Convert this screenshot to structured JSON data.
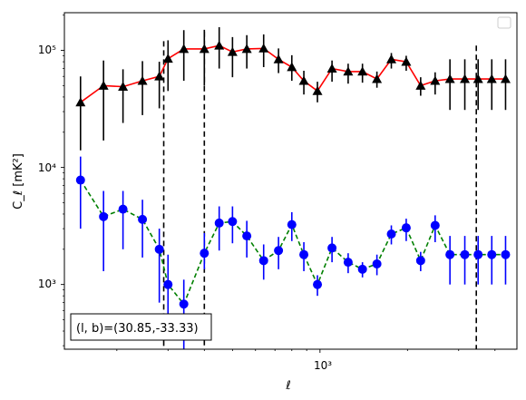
{
  "chart_data": {
    "type": "scatter",
    "title": "",
    "xlabel": "ℓ",
    "ylabel": "C_ℓ  [mK²]",
    "xscale": "log",
    "yscale": "log",
    "xlim": [
      132,
      4760
    ],
    "ylim": [
      280,
      210000
    ],
    "grid": false,
    "legend": {
      "placement": "top-right",
      "entries": []
    },
    "x_tick_label": "10³",
    "y_tick_labels": [
      "10³",
      "10⁴",
      "10⁵"
    ],
    "annotation": "(l, b)=(30.85,-33.33)",
    "vlines": [
      290,
      400,
      3450
    ],
    "series": [
      {
        "marker": "triangle",
        "color": "#000000",
        "line_color": "#ff0000",
        "errorbar_color": "#000000",
        "x": [
          150,
          180,
          210,
          245,
          280,
          300,
          340,
          400,
          450,
          500,
          560,
          640,
          720,
          800,
          880,
          980,
          1100,
          1250,
          1400,
          1570,
          1760,
          1980,
          2220,
          2490,
          2800,
          3150,
          3500,
          3900,
          4350
        ],
        "y": [
          36000,
          50000,
          49000,
          55000,
          60000,
          85000,
          103000,
          103000,
          110000,
          97000,
          103000,
          104000,
          84000,
          72000,
          55000,
          45000,
          70000,
          66000,
          66000,
          57000,
          84000,
          80000,
          50000,
          55000,
          57000,
          57000,
          57000,
          57000,
          57000
        ],
        "err_lo": [
          22000,
          33000,
          25000,
          27000,
          28000,
          40000,
          48000,
          53000,
          40000,
          38000,
          33000,
          32000,
          20000,
          17000,
          13000,
          9000,
          16000,
          14000,
          13000,
          9000,
          14000,
          13000,
          9000,
          13000,
          26000,
          26000,
          26000,
          26000,
          26000
        ],
        "err_hi": [
          24000,
          32000,
          20000,
          26000,
          20000,
          37000,
          46000,
          47000,
          48000,
          33000,
          32000,
          33000,
          20000,
          19000,
          12000,
          9000,
          12000,
          11000,
          11000,
          9000,
          11000,
          10000,
          9000,
          10000,
          27000,
          27000,
          27000,
          27000,
          27000
        ]
      },
      {
        "marker": "circle",
        "color": "#0000ff",
        "line_color": "#008000",
        "line_style": "dashed",
        "errorbar_color": "#0000ff",
        "x": [
          150,
          180,
          210,
          245,
          280,
          300,
          340,
          400,
          450,
          500,
          560,
          640,
          720,
          800,
          880,
          980,
          1100,
          1250,
          1400,
          1570,
          1760,
          1980,
          2220,
          2490,
          2800,
          3150,
          3500,
          3900,
          4350
        ],
        "y": [
          7800,
          3800,
          4400,
          3600,
          2000,
          1000,
          680,
          1850,
          3350,
          3450,
          2600,
          1600,
          1950,
          3250,
          1800,
          1000,
          2050,
          1550,
          1350,
          1500,
          2700,
          3050,
          1600,
          3200,
          1800,
          1800,
          1800,
          1800,
          1800
        ],
        "err_lo": [
          4800,
          2500,
          2400,
          1900,
          1300,
          550,
          420,
          500,
          1400,
          1200,
          900,
          500,
          600,
          900,
          500,
          200,
          500,
          300,
          200,
          300,
          500,
          700,
          300,
          900,
          800,
          800,
          800,
          800,
          800
        ],
        "err_hi": [
          4600,
          2500,
          1900,
          1700,
          1000,
          800,
          420,
          900,
          1300,
          1200,
          900,
          600,
          600,
          900,
          500,
          200,
          500,
          300,
          200,
          300,
          500,
          600,
          300,
          700,
          800,
          800,
          800,
          800,
          800
        ]
      }
    ]
  }
}
